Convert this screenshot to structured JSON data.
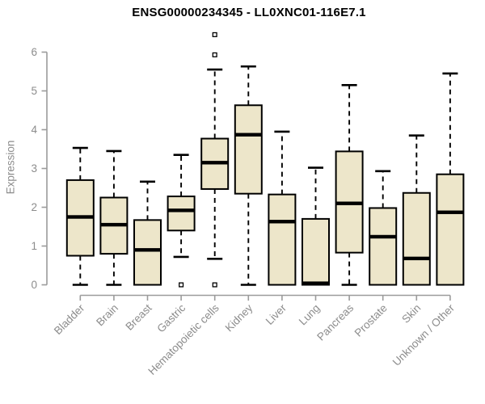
{
  "figure": {
    "background": "#ffffff"
  },
  "chart_data": {
    "type": "boxplot",
    "title": "ENSG00000234345 - LL0XNC01-116E7.1",
    "ylabel": "Expression",
    "xlabel": "",
    "ylim": [
      0,
      6.6
    ],
    "yticks": [
      0,
      1,
      2,
      3,
      4,
      5,
      6
    ],
    "grid": false,
    "legend": "none",
    "x_label_rotation_deg": 45,
    "categories": [
      "Bladder",
      "Brain",
      "Breast",
      "Gastric",
      "Hematopoietic cells",
      "Kidney",
      "Liver",
      "Lung",
      "Pancreas",
      "Prostate",
      "Skin",
      "Unknown / Other"
    ],
    "series": [
      {
        "name": "Bladder",
        "whisker_low": 0,
        "q1": 0.75,
        "median": 1.75,
        "q3": 2.7,
        "whisker_high": 3.53,
        "outliers": []
      },
      {
        "name": "Brain",
        "whisker_low": 0,
        "q1": 0.8,
        "median": 1.55,
        "q3": 2.25,
        "whisker_high": 3.45,
        "outliers": []
      },
      {
        "name": "Breast",
        "whisker_low": 0,
        "q1": 0,
        "median": 0.9,
        "q3": 1.67,
        "whisker_high": 2.66,
        "outliers": []
      },
      {
        "name": "Gastric",
        "whisker_low": 0.72,
        "q1": 1.4,
        "median": 1.92,
        "q3": 2.28,
        "whisker_high": 3.35,
        "outliers": [
          0
        ]
      },
      {
        "name": "Hematopoietic cells",
        "whisker_low": 0.67,
        "q1": 2.47,
        "median": 3.15,
        "q3": 3.77,
        "whisker_high": 5.55,
        "outliers": [
          6.45,
          5.93,
          0
        ]
      },
      {
        "name": "Kidney",
        "whisker_low": 0,
        "q1": 2.35,
        "median": 3.87,
        "q3": 4.63,
        "whisker_high": 5.63,
        "outliers": []
      },
      {
        "name": "Liver",
        "whisker_low": 0,
        "q1": 0,
        "median": 1.63,
        "q3": 2.33,
        "whisker_high": 3.95,
        "outliers": []
      },
      {
        "name": "Lung",
        "whisker_low": 0,
        "q1": 0,
        "median": 0.04,
        "q3": 1.7,
        "whisker_high": 3.02,
        "outliers": []
      },
      {
        "name": "Pancreas",
        "whisker_low": 0,
        "q1": 0.83,
        "median": 2.1,
        "q3": 3.44,
        "whisker_high": 5.15,
        "outliers": []
      },
      {
        "name": "Prostate",
        "whisker_low": 0,
        "q1": 0,
        "median": 1.24,
        "q3": 1.98,
        "whisker_high": 2.93,
        "outliers": []
      },
      {
        "name": "Skin",
        "whisker_low": 0,
        "q1": 0,
        "median": 0.68,
        "q3": 2.37,
        "whisker_high": 3.85,
        "outliers": []
      },
      {
        "name": "Unknown / Other",
        "whisker_low": 0,
        "q1": 0,
        "median": 1.87,
        "q3": 2.85,
        "whisker_high": 5.45,
        "outliers": []
      }
    ],
    "colors": {
      "box_fill": "#EDE6CA",
      "box_stroke": "#000000",
      "median": "#000000",
      "whisker": "#000000",
      "outlier_stroke": "#000000",
      "outlier_fill": "#FFFFFF",
      "axis_line": "#9B9B9B",
      "tick_label": "#8C8C8C",
      "title": "#000000"
    }
  }
}
